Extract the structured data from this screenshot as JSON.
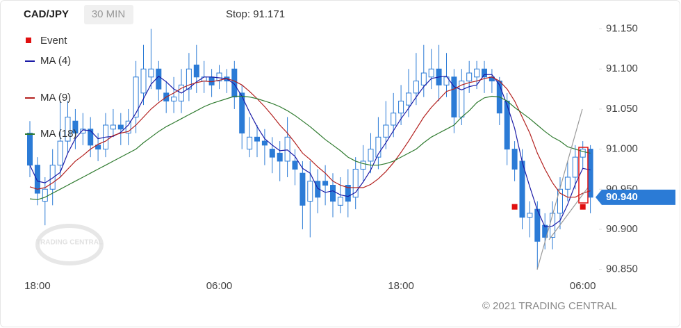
{
  "chart_data": {
    "type": "candlestick",
    "title": "CAD/JPY",
    "timeframe": "30 MIN",
    "stop_text": "Stop: 91.171",
    "watermark": "TRADING CENTRAL",
    "copyright": "© 2021 TRADING CENTRAL",
    "color": "#2b7bd6",
    "categories": [
      null,
      "18:00",
      null,
      null,
      null,
      null,
      null,
      null,
      null,
      null,
      null,
      null,
      null,
      null,
      null,
      null,
      null,
      null,
      null,
      null,
      null,
      null,
      null,
      null,
      null,
      "06:00",
      null,
      null,
      null,
      null,
      null,
      null,
      null,
      null,
      null,
      null,
      null,
      null,
      null,
      null,
      null,
      null,
      null,
      null,
      null,
      null,
      null,
      null,
      null,
      "18:00",
      null,
      null,
      null,
      null,
      null,
      null,
      null,
      null,
      null,
      null,
      null,
      null,
      null,
      null,
      null,
      null,
      null,
      null,
      null,
      null,
      null,
      null,
      null,
      "06:00",
      null
    ],
    "open": [
      91.02,
      90.98,
      90.935,
      90.95,
      90.98,
      91.01,
      91.035,
      91.02,
      91.025,
      91.005,
      91.0,
      91.025,
      91.03,
      91.02,
      91.04,
      91.07,
      91.09,
      91.1,
      91.07,
      91.06,
      91.06,
      91.075,
      91.105,
      91.085,
      91.09,
      91.085,
      91.09,
      91.1,
      91.07,
      91.0,
      91.015,
      91.01,
      91.0,
      90.995,
      90.985,
      90.985,
      90.97,
      90.935,
      90.96,
      90.96,
      90.955,
      90.93,
      90.955,
      90.94,
      90.975,
      90.985,
      90.99,
      91.015,
      91.03,
      91.045,
      91.055,
      91.07,
      91.08,
      91.09,
      91.1,
      91.08,
      91.09,
      91.04,
      91.085,
      91.09,
      91.1,
      91.09,
      91.085,
      91.06,
      91.0,
      90.985,
      90.915,
      90.925,
      90.905,
      90.89,
      90.92,
      90.95,
      90.965,
      90.99,
      91.0
    ],
    "high": [
      91.035,
      90.99,
      90.965,
      91.0,
      91.06,
      91.06,
      91.05,
      91.045,
      91.04,
      91.02,
      91.045,
      91.05,
      91.045,
      91.05,
      91.11,
      91.13,
      91.15,
      91.11,
      91.085,
      91.09,
      91.1,
      91.12,
      91.13,
      91.11,
      91.1,
      91.105,
      91.1,
      91.11,
      91.08,
      91.04,
      91.03,
      91.025,
      91.015,
      91.01,
      91.04,
      91.0,
      90.985,
      90.985,
      90.975,
      90.98,
      90.97,
      90.965,
      90.975,
      90.99,
      91.005,
      91.02,
      91.04,
      91.06,
      91.07,
      91.08,
      91.1,
      91.12,
      91.13,
      91.125,
      91.13,
      91.12,
      91.1,
      91.1,
      91.11,
      91.11,
      91.11,
      91.1,
      91.09,
      91.07,
      91.01,
      91.0,
      90.935,
      90.935,
      90.92,
      90.935,
      90.965,
      90.985,
      91.005,
      91.01,
      91.005
    ],
    "low": [
      90.965,
      90.93,
      90.905,
      90.93,
      90.965,
      90.995,
      91.0,
      91.005,
      90.99,
      90.985,
      90.99,
      91.015,
      91.005,
      91.005,
      91.02,
      91.055,
      91.075,
      91.06,
      91.045,
      91.045,
      91.045,
      91.06,
      91.07,
      91.07,
      91.065,
      91.075,
      91.07,
      91.05,
      91.0,
      90.99,
      90.99,
      90.98,
      90.97,
      90.96,
      90.965,
      90.955,
      90.9,
      90.89,
      90.92,
      90.93,
      90.915,
      90.92,
      90.915,
      90.925,
      90.96,
      90.97,
      90.975,
      91.0,
      91.015,
      91.03,
      91.04,
      91.055,
      91.065,
      91.075,
      91.06,
      91.065,
      91.02,
      91.03,
      91.07,
      91.075,
      91.07,
      91.07,
      91.03,
      90.98,
      90.96,
      90.9,
      90.89,
      90.85,
      90.875,
      90.875,
      90.9,
      90.935,
      90.95,
      90.975,
      90.92
    ],
    "close": [
      90.98,
      90.945,
      90.95,
      90.98,
      91.01,
      91.04,
      91.02,
      91.025,
      91.005,
      91.0,
      91.03,
      91.03,
      91.025,
      91.035,
      91.09,
      91.1,
      91.1,
      91.075,
      91.06,
      91.065,
      91.08,
      91.1,
      91.09,
      91.09,
      91.08,
      91.095,
      91.085,
      91.065,
      91.02,
      91.015,
      91.01,
      91.005,
      90.99,
      90.985,
      91.015,
      90.975,
      90.93,
      90.96,
      90.94,
      90.955,
      90.935,
      90.94,
      90.935,
      90.975,
      90.985,
      91.0,
      91.015,
      91.03,
      91.045,
      91.06,
      91.07,
      91.085,
      91.095,
      91.1,
      91.08,
      91.09,
      91.04,
      91.085,
      91.095,
      91.1,
      91.09,
      91.085,
      91.045,
      91.0,
      90.975,
      90.915,
      90.92,
      90.885,
      90.89,
      90.92,
      90.95,
      90.965,
      90.99,
      91.0,
      90.94
    ],
    "series": [
      {
        "name": "MA (4)",
        "color": "#1a1aa6",
        "values": [
          90.98,
          90.96,
          90.958,
          90.964,
          90.971,
          90.995,
          91.013,
          91.024,
          91.023,
          91.013,
          91.015,
          91.016,
          91.021,
          91.03,
          91.045,
          91.063,
          91.081,
          91.091,
          91.084,
          91.075,
          91.07,
          91.076,
          91.084,
          91.09,
          91.09,
          91.089,
          91.088,
          91.081,
          91.066,
          91.046,
          91.028,
          91.013,
          91.005,
          90.998,
          90.999,
          90.991,
          90.976,
          90.97,
          90.951,
          90.946,
          90.948,
          90.943,
          90.941,
          90.946,
          90.959,
          90.974,
          90.994,
          91.008,
          91.023,
          91.038,
          91.051,
          91.065,
          91.078,
          91.088,
          91.09,
          91.091,
          91.078,
          91.074,
          91.078,
          91.08,
          91.093,
          91.093,
          91.08,
          91.055,
          91.026,
          90.984,
          90.953,
          90.924,
          90.903,
          90.904,
          90.911,
          90.931,
          90.956,
          90.976,
          90.974
        ]
      },
      {
        "name": "MA (9)",
        "color": "#b3201e",
        "values": [
          90.953,
          90.95,
          90.952,
          90.958,
          90.965,
          90.975,
          90.985,
          90.992,
          91.0,
          91.006,
          91.01,
          91.017,
          91.02,
          91.022,
          91.03,
          91.04,
          91.05,
          91.058,
          91.065,
          91.07,
          91.076,
          91.08,
          91.083,
          91.085,
          91.084,
          91.086,
          91.088,
          91.085,
          91.08,
          91.072,
          91.063,
          91.053,
          91.042,
          91.03,
          91.02,
          91.008,
          90.995,
          90.987,
          90.978,
          90.97,
          90.96,
          90.955,
          90.952,
          90.952,
          90.952,
          90.956,
          90.963,
          90.972,
          90.983,
          90.996,
          91.01,
          91.025,
          91.04,
          91.052,
          91.062,
          91.072,
          91.075,
          91.08,
          91.083,
          91.085,
          91.088,
          91.09,
          91.085,
          91.075,
          91.06,
          91.04,
          91.02,
          90.995,
          90.975,
          90.958,
          90.945,
          90.94,
          90.94,
          90.945,
          90.948
        ]
      },
      {
        "name": "MA (18)",
        "color": "#2e7a2e",
        "values": [
          90.938,
          90.937,
          90.94,
          90.945,
          90.95,
          90.955,
          90.96,
          90.965,
          90.97,
          90.975,
          90.98,
          90.985,
          90.99,
          90.995,
          91.0,
          91.008,
          91.015,
          91.022,
          91.028,
          91.033,
          91.038,
          91.043,
          91.048,
          91.053,
          91.057,
          91.06,
          91.063,
          91.066,
          91.066,
          91.065,
          91.063,
          91.06,
          91.057,
          91.053,
          91.048,
          91.042,
          91.035,
          91.028,
          91.02,
          91.012,
          91.005,
          90.998,
          90.99,
          90.985,
          90.982,
          90.98,
          90.98,
          90.982,
          90.985,
          90.99,
          90.995,
          91.0,
          91.008,
          91.015,
          91.02,
          91.025,
          91.03,
          91.04,
          91.048,
          91.058,
          91.064,
          91.066,
          91.065,
          91.06,
          91.052,
          91.045,
          91.038,
          91.03,
          91.022,
          91.015,
          91.01,
          91.003,
          91.0,
          90.997,
          90.995
        ]
      }
    ],
    "events": {
      "name": "Event",
      "color": "#e01010",
      "values": [
        null,
        null,
        null,
        null,
        null,
        null,
        null,
        null,
        null,
        null,
        null,
        null,
        null,
        null,
        null,
        null,
        null,
        null,
        null,
        null,
        null,
        null,
        null,
        null,
        null,
        null,
        null,
        null,
        null,
        null,
        null,
        null,
        null,
        null,
        null,
        null,
        null,
        null,
        null,
        null,
        null,
        null,
        null,
        null,
        null,
        null,
        null,
        null,
        null,
        null,
        null,
        null,
        null,
        null,
        null,
        null,
        null,
        null,
        null,
        null,
        null,
        null,
        null,
        null,
        90.928,
        null,
        null,
        null,
        null,
        null,
        null,
        null,
        null,
        90.928,
        null
      ]
    },
    "last_price": {
      "value": 90.94,
      "label": "90.940"
    },
    "ylim": [
      90.841,
      91.167
    ],
    "yticks": [
      {
        "value": 90.85,
        "label": "90.850"
      },
      {
        "value": 90.9,
        "label": "90.900"
      },
      {
        "value": 90.95,
        "label": "90.950"
      },
      {
        "value": 91.0,
        "label": "91.000"
      },
      {
        "value": 91.05,
        "label": "91.050"
      },
      {
        "value": 91.1,
        "label": "91.100"
      },
      {
        "value": 91.15,
        "label": "91.150"
      }
    ],
    "grid": false
  }
}
